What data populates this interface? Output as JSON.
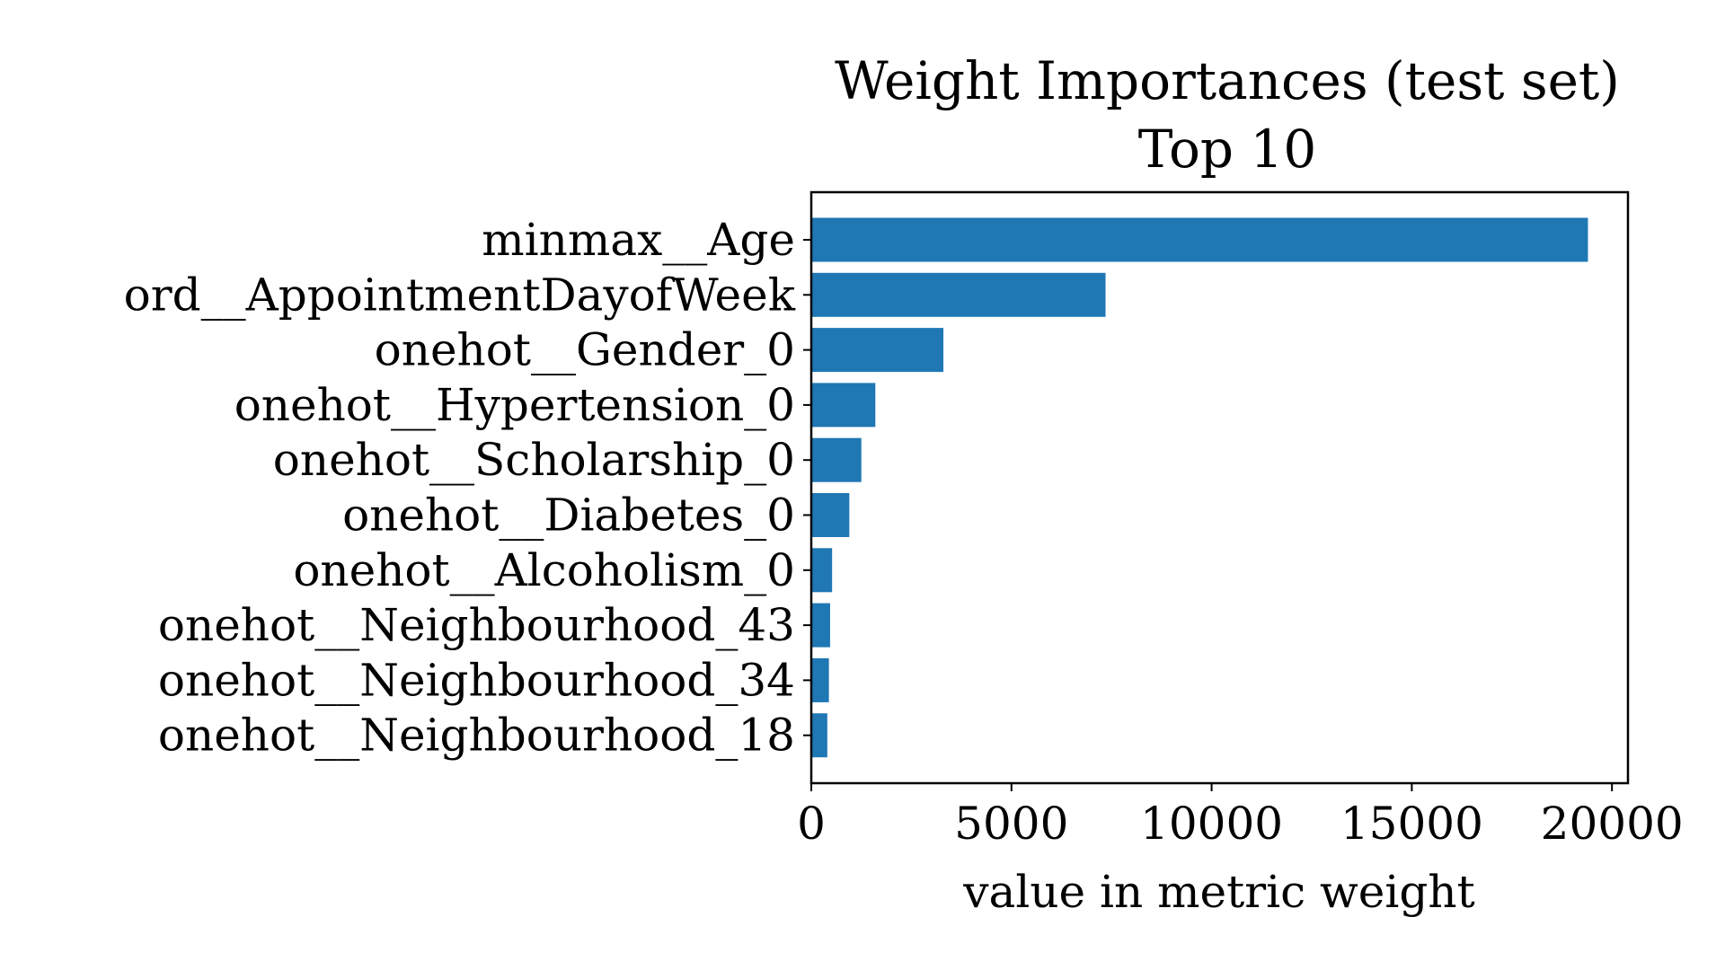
{
  "chart_data": {
    "type": "bar",
    "orientation": "horizontal",
    "title": "Weight Importances (test set)",
    "subtitle": "Top 10",
    "xlabel": "value in metric weight",
    "ylabel": "",
    "xlim": [
      0,
      20400
    ],
    "xticks": [
      0,
      5000,
      10000,
      15000,
      20000
    ],
    "xtick_labels": [
      "0",
      "5000",
      "10000",
      "15000",
      "20000"
    ],
    "grid": false,
    "bar_color": "#1f77b4",
    "categories": [
      "minmax__Age",
      "ord__AppointmentDayofWeek",
      "onehot__Gender_0",
      "onehot__Hypertension_0",
      "onehot__Scholarship_0",
      "onehot__Diabetes_0",
      "onehot__Alcoholism_0",
      "onehot__Neighbourhood_43",
      "onehot__Neighbourhood_34",
      "onehot__Neighbourhood_18"
    ],
    "values": [
      19400,
      7350,
      3300,
      1600,
      1250,
      950,
      520,
      470,
      440,
      400
    ]
  }
}
